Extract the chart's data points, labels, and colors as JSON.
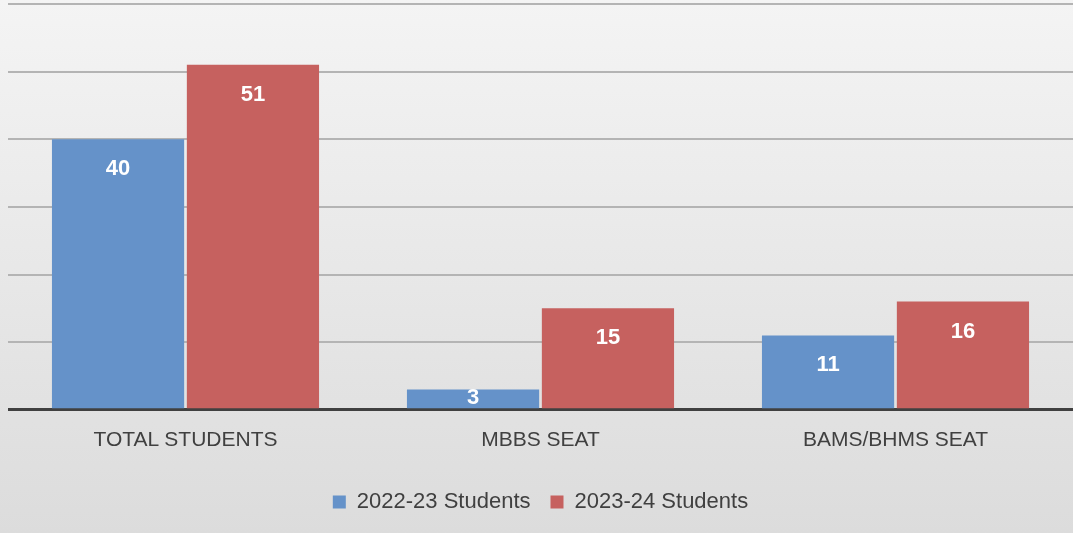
{
  "chart_data": {
    "type": "bar",
    "categories": [
      "TOTAL STUDENTS",
      "MBBS SEAT",
      "BAMS/BHMS SEAT"
    ],
    "series": [
      {
        "name": "2022-23 Students",
        "color": "#6592c9",
        "values": [
          40,
          3,
          11
        ]
      },
      {
        "name": "2023-24 Students",
        "color": "#c6615f",
        "values": [
          51,
          15,
          16
        ]
      }
    ],
    "tick_labels": "x",
    "grid": "y",
    "legend": "bottom",
    "data_labels": true
  }
}
